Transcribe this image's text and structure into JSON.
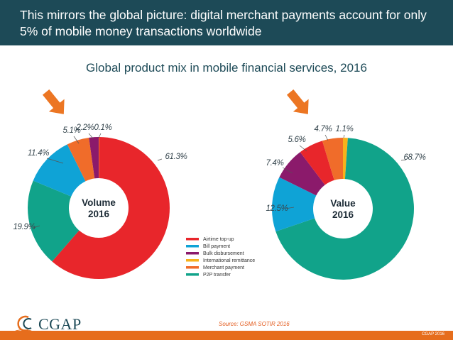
{
  "slide": {
    "title": "This mirrors the global picture: digital merchant payments account for only 5% of mobile money transactions worldwide",
    "subtitle": "Global product mix in mobile financial services, 2016",
    "source": "Source: GSMA SOTIR 2016",
    "logo": "CGAP",
    "copyright": "CGAP 2016"
  },
  "colors": {
    "header_bg": "#1d4a57",
    "airtime": "#e8262b",
    "bill": "#0fa3d6",
    "bulk": "#8b1a6b",
    "remittance": "#f7b21b",
    "merchant": "#f06c2a",
    "p2p": "#11a38a",
    "arrow": "#ec7623",
    "footer": "#e66d1c"
  },
  "chart_data": [
    {
      "type": "pie",
      "center_label": [
        "Volume",
        "2016"
      ],
      "categories": [
        "Airtime top-up",
        "Bill payment",
        "Bulk disbursement",
        "International remittance",
        "Merchant payment",
        "P2P transfer"
      ],
      "values": [
        61.3,
        11.4,
        2.2,
        0.1,
        5.1,
        19.9
      ],
      "value_labels": [
        "61.3%",
        "11.4%",
        "2.2%",
        "0.1%",
        "5.1%",
        "19.9%"
      ],
      "legend": "bottom-right",
      "highlight": "Merchant payment"
    },
    {
      "type": "pie",
      "center_label": [
        "Value",
        "2016"
      ],
      "categories": [
        "Airtime top-up",
        "Bill payment",
        "Bulk disbursement",
        "International remittance",
        "Merchant payment",
        "P2P transfer"
      ],
      "values": [
        5.6,
        12.5,
        7.4,
        1.1,
        4.7,
        68.7
      ],
      "value_labels": [
        "5.6%",
        "12.5%",
        "7.4%",
        "1.1%",
        "4.7%",
        "68.7%"
      ],
      "highlight": "Merchant payment"
    }
  ]
}
